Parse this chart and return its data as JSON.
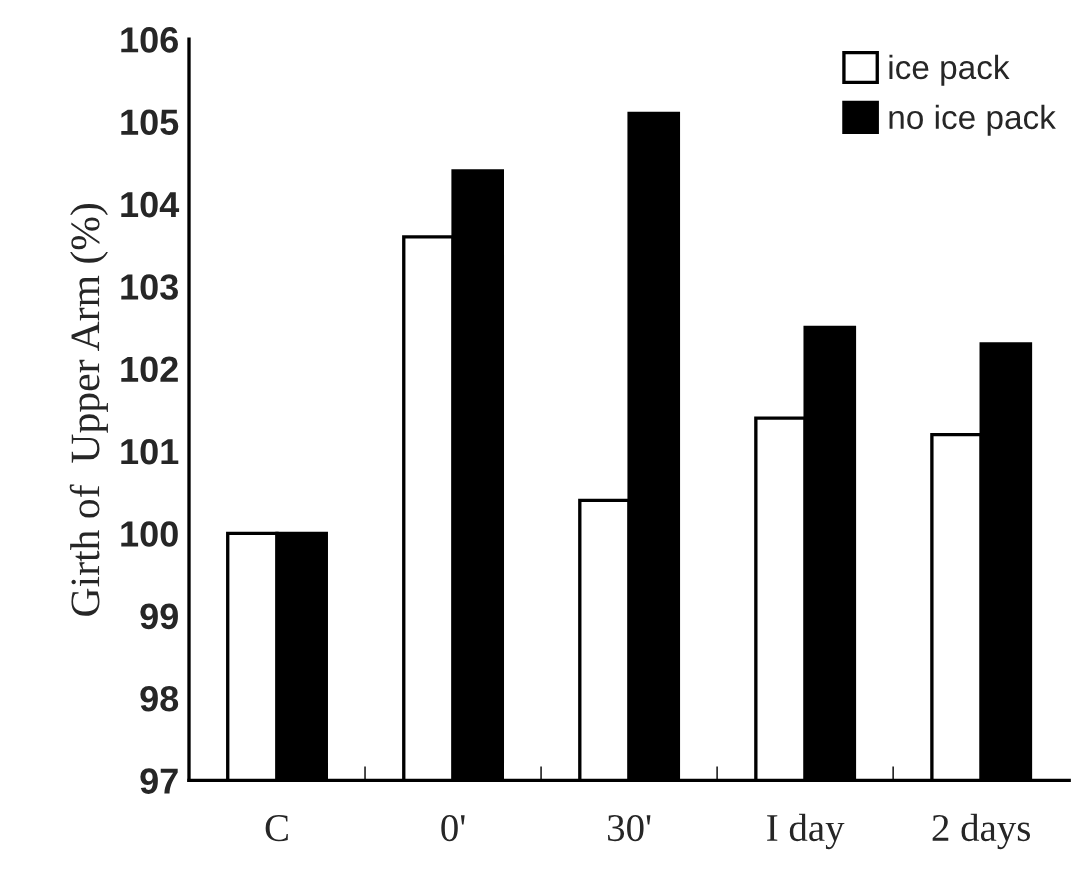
{
  "chart_data": {
    "type": "bar",
    "ylabel": "Girth of  Upper Arm (%)",
    "categories": [
      "C",
      "0'",
      "30'",
      "I day",
      "2 days"
    ],
    "series": [
      {
        "name": "ice pack",
        "color": "#ffffff",
        "values": [
          100,
          103.6,
          100.4,
          101.4,
          101.2
        ]
      },
      {
        "name": "no ice pack",
        "color": "#000000",
        "values": [
          100,
          104.4,
          105.1,
          102.5,
          102.3
        ]
      }
    ],
    "ylim": [
      97,
      106
    ],
    "yticks": [
      97,
      98,
      99,
      100,
      101,
      102,
      103,
      104,
      105,
      106
    ],
    "grid": false,
    "legend": "top right"
  }
}
